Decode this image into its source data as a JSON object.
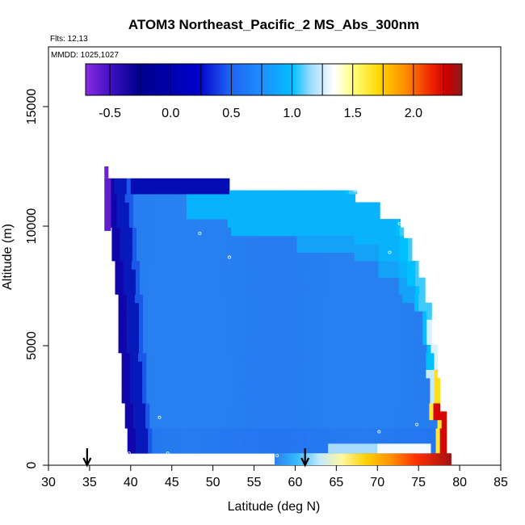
{
  "chart_data": {
    "type": "heatmap",
    "title": "ATOM3 Northeast_Pacific_2 MS_Abs_300nm",
    "flights_note": "Flts: 12,13",
    "dates_note": "MMDD: 1025,1027",
    "xlabel": "Latitude (deg N)",
    "ylabel": "Altitude (m)",
    "xlim": [
      30,
      85
    ],
    "ylim": [
      0,
      17500
    ],
    "x_ticks": [
      "30",
      "35",
      "40",
      "45",
      "50",
      "55",
      "60",
      "65",
      "70",
      "75",
      "80",
      "85"
    ],
    "y_ticks": [
      "0",
      "5000",
      "10000",
      "15000"
    ],
    "grid": false,
    "colorbar": {
      "placement": "top-inside",
      "range": [
        -0.7,
        2.4
      ],
      "ticks": [
        "-0.5",
        "0.0",
        "0.5",
        "1.0",
        "1.5",
        "2.0"
      ],
      "colors": [
        "#8a2be2",
        "#00008b",
        "#0000cd",
        "#1e90ff",
        "#00bfff",
        "#ffffff",
        "#ffff66",
        "#ffd700",
        "#ff8c00",
        "#ff4500",
        "#cc0000",
        "#8b1a1a"
      ]
    },
    "markers": [
      {
        "name": "arrow-1",
        "lat": 34.7
      },
      {
        "name": "arrow-2",
        "lat": 61.2
      }
    ],
    "regions": [
      {
        "name": "upper-purple-cap",
        "lat": [
          36.8,
          37.3
        ],
        "alt": [
          12000,
          12500
        ],
        "value": -0.65
      },
      {
        "name": "left-edge-purple",
        "lat": [
          36.8,
          38.2
        ],
        "alt": [
          9800,
          12000
        ],
        "value": -0.6
      },
      {
        "name": "dark-blue-west-wall",
        "lat": [
          37.5,
          41.0
        ],
        "alt": [
          500,
          12000
        ],
        "value": -0.4
      },
      {
        "name": "top-dark-blue-band",
        "lat": [
          37.5,
          52.0
        ],
        "alt": [
          11500,
          12000
        ],
        "value": -0.35
      },
      {
        "name": "main-mid-blue-interior",
        "lat": [
          41.0,
          75.5
        ],
        "alt": [
          700,
          11000
        ],
        "value": 0.25
      },
      {
        "name": "upper-cyan-band",
        "lat": [
          48.0,
          73.0
        ],
        "alt": [
          9500,
          11400
        ],
        "value": 0.45
      },
      {
        "name": "east-light-edge",
        "lat": [
          75.5,
          77.5
        ],
        "alt": [
          1000,
          6000
        ],
        "value": 0.9
      },
      {
        "name": "east-yellow-edge",
        "lat": [
          76.5,
          77.8
        ],
        "alt": [
          500,
          4000
        ],
        "value": 1.3
      },
      {
        "name": "east-red-edge",
        "lat": [
          77.5,
          78.5
        ],
        "alt": [
          500,
          2500
        ],
        "value": 1.9
      },
      {
        "name": "surface-gradient",
        "lat": [
          57.5,
          79.0
        ],
        "alt": [
          0,
          500
        ],
        "value": 1.2
      }
    ],
    "sample_points": [
      {
        "lat": 48.4,
        "alt": 9700
      },
      {
        "lat": 52.0,
        "alt": 8700
      },
      {
        "lat": 71.5,
        "alt": 8900
      },
      {
        "lat": 72.7,
        "alt": 10100
      },
      {
        "lat": 67.3,
        "alt": 11500
      },
      {
        "lat": 43.5,
        "alt": 2000
      },
      {
        "lat": 70.2,
        "alt": 1400
      },
      {
        "lat": 74.8,
        "alt": 1700
      },
      {
        "lat": 39.8,
        "alt": 500
      },
      {
        "lat": 44.5,
        "alt": 500
      },
      {
        "lat": 57.8,
        "alt": 400
      },
      {
        "lat": 76.8,
        "alt": 6200
      }
    ]
  }
}
